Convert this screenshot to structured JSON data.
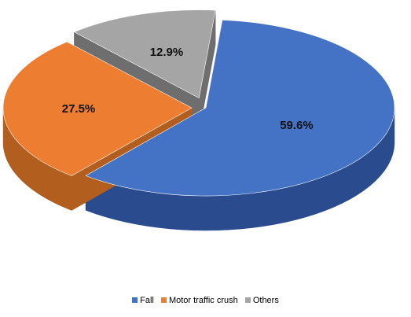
{
  "chart_data": {
    "type": "pie",
    "style": "3d-exploded",
    "categories": [
      "Fall",
      "Motor traffic crush",
      "Others"
    ],
    "values": [
      59.6,
      27.5,
      12.9
    ],
    "data_labels": [
      "59.6%",
      "27.5%",
      "12.9%"
    ],
    "colors": [
      "#4472C4",
      "#ED7D31",
      "#A5A5A5"
    ],
    "side_colors": [
      "#2A4C8E",
      "#B25E1F",
      "#6E6E6E"
    ],
    "legend": {
      "position": "bottom",
      "entries": [
        "Fall",
        "Motor traffic crush",
        "Others"
      ]
    },
    "title": ""
  }
}
